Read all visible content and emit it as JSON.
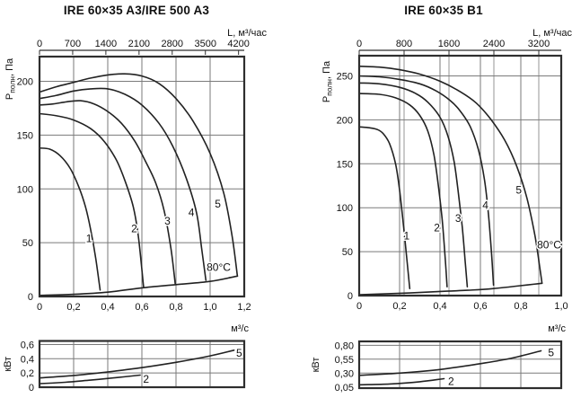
{
  "colors": {
    "curve": "#222222",
    "grid": "#7a7a7a",
    "grid_top": "#b9b9b9",
    "border": "#2e2e2e",
    "text": "#111111"
  },
  "chart_data": [
    {
      "type": "line",
      "title": "IRE 60×35 A3/IRE 500 A3",
      "top_axis": {
        "label": "L, м³/час",
        "per_hour_factor": 3600,
        "show_grid": false,
        "ticks": [
          {
            "t": "0",
            "v": 0
          },
          {
            "t": "700",
            "v": 700
          },
          {
            "t": "1400",
            "v": 1400
          },
          {
            "t": "2100",
            "v": 2100
          },
          {
            "t": "2800",
            "v": 2800
          },
          {
            "t": "3500",
            "v": 3500
          },
          {
            "t": "4200",
            "v": 4200
          }
        ]
      },
      "pressure_axis": {
        "label_main": "Р",
        "label_sub": "полн",
        "label_rest": ", Па",
        "max": 223,
        "ticks": [
          {
            "t": "0",
            "v": 0
          },
          {
            "t": "50",
            "v": 50
          },
          {
            "t": "100",
            "v": 100
          },
          {
            "t": "150",
            "v": 150
          },
          {
            "t": "200",
            "v": 200
          }
        ]
      },
      "flow_axis": {
        "label": "м³/с",
        "max": 1.2,
        "ticks": [
          {
            "t": "0",
            "v": 0
          },
          {
            "t": "0,2",
            "v": 0.2
          },
          {
            "t": "0,4",
            "v": 0.4
          },
          {
            "t": "0,6",
            "v": 0.6
          },
          {
            "t": "0,8",
            "v": 0.8
          },
          {
            "t": "1,0",
            "v": 1.0
          },
          {
            "t": "1,2",
            "v": 1.2
          }
        ]
      },
      "curves": [
        {
          "label": "1",
          "label_pos": [
            0.29,
            54
          ],
          "points": [
            [
              0,
              138
            ],
            [
              0.06,
              137
            ],
            [
              0.12,
              131
            ],
            [
              0.18,
              119
            ],
            [
              0.23,
              102
            ],
            [
              0.27,
              83
            ],
            [
              0.3,
              62
            ],
            [
              0.33,
              35
            ],
            [
              0.355,
              6
            ]
          ]
        },
        {
          "label": "2",
          "label_pos": [
            0.555,
            63
          ],
          "points": [
            [
              0,
              170
            ],
            [
              0.1,
              168
            ],
            [
              0.2,
              164
            ],
            [
              0.3,
              156
            ],
            [
              0.38,
              144
            ],
            [
              0.45,
              127
            ],
            [
              0.5,
              108
            ],
            [
              0.55,
              83
            ],
            [
              0.58,
              55
            ],
            [
              0.61,
              9
            ]
          ]
        },
        {
          "label": "3",
          "label_pos": [
            0.75,
            70
          ],
          "points": [
            [
              0,
              178
            ],
            [
              0.08,
              179
            ],
            [
              0.16,
              181
            ],
            [
              0.24,
              182
            ],
            [
              0.32,
              179
            ],
            [
              0.4,
              172
            ],
            [
              0.48,
              161
            ],
            [
              0.56,
              144
            ],
            [
              0.62,
              126
            ],
            [
              0.68,
              106
            ],
            [
              0.73,
              80
            ],
            [
              0.77,
              45
            ],
            [
              0.795,
              12
            ]
          ]
        },
        {
          "label": "4",
          "label_pos": [
            0.89,
            78
          ],
          "points": [
            [
              0,
              184
            ],
            [
              0.1,
              187
            ],
            [
              0.2,
              191
            ],
            [
              0.3,
              193
            ],
            [
              0.4,
              193
            ],
            [
              0.5,
              188
            ],
            [
              0.6,
              178
            ],
            [
              0.7,
              161
            ],
            [
              0.78,
              140
            ],
            [
              0.86,
              110
            ],
            [
              0.92,
              78
            ],
            [
              0.95,
              45
            ],
            [
              0.975,
              15
            ]
          ]
        },
        {
          "label": "5",
          "label_pos": [
            1.045,
            86
          ],
          "points": [
            [
              0,
              190
            ],
            [
              0.1,
              195
            ],
            [
              0.2,
              199
            ],
            [
              0.3,
              203
            ],
            [
              0.4,
              206
            ],
            [
              0.5,
              207
            ],
            [
              0.6,
              205
            ],
            [
              0.7,
              198
            ],
            [
              0.8,
              184
            ],
            [
              0.9,
              163
            ],
            [
              1.0,
              133
            ],
            [
              1.08,
              96
            ],
            [
              1.13,
              55
            ],
            [
              1.16,
              19
            ]
          ]
        }
      ],
      "envelope": [
        [
          0,
          1
        ],
        [
          0.2,
          2
        ],
        [
          0.4,
          4
        ],
        [
          0.6,
          8
        ],
        [
          0.8,
          11
        ],
        [
          1.0,
          14
        ],
        [
          1.16,
          19
        ]
      ],
      "annotation": {
        "text": "80°C",
        "pos": [
          1.05,
          27
        ]
      },
      "power_chart": {
        "y_label": "кВт",
        "y_bottom": 0,
        "y_top": 0.65,
        "ticks": [
          {
            "t": "0",
            "v": 0
          },
          {
            "t": "0,2",
            "v": 0.2
          },
          {
            "t": "0,4",
            "v": 0.4
          },
          {
            "t": "0,6",
            "v": 0.6
          }
        ],
        "curves": [
          {
            "label": "5",
            "label_pos": [
              1.17,
              0.48
            ],
            "points": [
              [
                0,
                0.13
              ],
              [
                0.2,
                0.165
              ],
              [
                0.4,
                0.215
              ],
              [
                0.6,
                0.275
              ],
              [
                0.8,
                0.35
              ],
              [
                1.0,
                0.44
              ],
              [
                1.14,
                0.52
              ]
            ]
          },
          {
            "label": "2",
            "label_pos": [
              0.625,
              0.115
            ],
            "points": [
              [
                0,
                0.05
              ],
              [
                0.15,
                0.07
              ],
              [
                0.3,
                0.1
              ],
              [
                0.45,
                0.135
              ],
              [
                0.59,
                0.17
              ]
            ]
          }
        ]
      }
    },
    {
      "type": "line",
      "title": "IRE 60×35 B1",
      "top_axis": {
        "label": "L, м³/час",
        "per_hour_factor": 3600,
        "show_grid": true,
        "ticks": [
          {
            "t": "0",
            "v": 0
          },
          {
            "t": "800",
            "v": 800
          },
          {
            "t": "1600",
            "v": 1600
          },
          {
            "t": "2400",
            "v": 2400
          },
          {
            "t": "3200",
            "v": 3200
          }
        ]
      },
      "pressure_axis": {
        "label_main": "Р",
        "label_sub": "полн",
        "label_rest": ", Па",
        "max": 273,
        "ticks": [
          {
            "t": "0",
            "v": 0
          },
          {
            "t": "50",
            "v": 50
          },
          {
            "t": "100",
            "v": 100
          },
          {
            "t": "150",
            "v": 150
          },
          {
            "t": "200",
            "v": 200
          },
          {
            "t": "250",
            "v": 250
          }
        ]
      },
      "flow_axis": {
        "label": "м³/с",
        "max": 1.0,
        "ticks": [
          {
            "t": "0",
            "v": 0
          },
          {
            "t": "0,2",
            "v": 0.2
          },
          {
            "t": "0,4",
            "v": 0.4
          },
          {
            "t": "0,6",
            "v": 0.6
          },
          {
            "t": "0,8",
            "v": 0.8
          },
          {
            "t": "1,0",
            "v": 1.0
          }
        ]
      },
      "curves": [
        {
          "label": "1",
          "label_pos": [
            0.235,
            68
          ],
          "points": [
            [
              0,
              192
            ],
            [
              0.05,
              191
            ],
            [
              0.09,
              189
            ],
            [
              0.12,
              184
            ],
            [
              0.15,
              173
            ],
            [
              0.18,
              150
            ],
            [
              0.2,
              120
            ],
            [
              0.22,
              78
            ],
            [
              0.24,
              32
            ],
            [
              0.25,
              8
            ]
          ]
        },
        {
          "label": "2",
          "label_pos": [
            0.385,
            77
          ],
          "points": [
            [
              0,
              230
            ],
            [
              0.1,
              229
            ],
            [
              0.18,
              225
            ],
            [
              0.25,
              217
            ],
            [
              0.3,
              205
            ],
            [
              0.34,
              187
            ],
            [
              0.37,
              160
            ],
            [
              0.39,
              128
            ],
            [
              0.41,
              88
            ],
            [
              0.425,
              45
            ],
            [
              0.435,
              10
            ]
          ]
        },
        {
          "label": "3",
          "label_pos": [
            0.49,
            88
          ],
          "points": [
            [
              0,
              242
            ],
            [
              0.1,
              241
            ],
            [
              0.2,
              237
            ],
            [
              0.28,
              230
            ],
            [
              0.34,
              220
            ],
            [
              0.4,
              203
            ],
            [
              0.44,
              181
            ],
            [
              0.47,
              152
            ],
            [
              0.49,
              118
            ],
            [
              0.51,
              78
            ],
            [
              0.525,
              38
            ],
            [
              0.535,
              10
            ]
          ]
        },
        {
          "label": "4",
          "label_pos": [
            0.625,
            103
          ],
          "points": [
            [
              0,
              250
            ],
            [
              0.1,
              249
            ],
            [
              0.2,
              246
            ],
            [
              0.3,
              241
            ],
            [
              0.38,
              233
            ],
            [
              0.45,
              222
            ],
            [
              0.5,
              210
            ],
            [
              0.55,
              192
            ],
            [
              0.59,
              166
            ],
            [
              0.62,
              132
            ],
            [
              0.64,
              92
            ],
            [
              0.655,
              48
            ],
            [
              0.665,
              12
            ]
          ]
        },
        {
          "label": "5",
          "label_pos": [
            0.79,
            120
          ],
          "points": [
            [
              0,
              261
            ],
            [
              0.1,
              260
            ],
            [
              0.2,
              257
            ],
            [
              0.3,
              252
            ],
            [
              0.4,
              244
            ],
            [
              0.5,
              232
            ],
            [
              0.58,
              219
            ],
            [
              0.65,
              201
            ],
            [
              0.72,
              177
            ],
            [
              0.78,
              147
            ],
            [
              0.83,
              111
            ],
            [
              0.87,
              68
            ],
            [
              0.895,
              30
            ],
            [
              0.905,
              14
            ]
          ]
        }
      ],
      "envelope": [
        [
          0,
          1
        ],
        [
          0.25,
          3
        ],
        [
          0.435,
          5
        ],
        [
          0.535,
          6
        ],
        [
          0.665,
          8
        ],
        [
          0.905,
          14
        ]
      ],
      "annotation": {
        "text": "80°C",
        "pos": [
          0.94,
          58
        ]
      },
      "power_chart": {
        "y_label": "кВт",
        "y_bottom": 0.03,
        "y_top": 0.87,
        "ticks": [
          {
            "t": "0,05",
            "v": 0.05
          },
          {
            "t": "0,30",
            "v": 0.3
          },
          {
            "t": "0,55",
            "v": 0.55
          },
          {
            "t": "0,80",
            "v": 0.8
          }
        ],
        "curves": [
          {
            "label": "5",
            "label_pos": [
              0.95,
              0.67
            ],
            "points": [
              [
                0,
                0.26
              ],
              [
                0.2,
                0.3
              ],
              [
                0.4,
                0.365
              ],
              [
                0.6,
                0.47
              ],
              [
                0.75,
                0.565
              ],
              [
                0.9,
                0.7
              ]
            ]
          },
          {
            "label": "2",
            "label_pos": [
              0.455,
              0.155
            ],
            "points": [
              [
                0,
                0.09
              ],
              [
                0.15,
                0.105
              ],
              [
                0.3,
                0.145
              ],
              [
                0.42,
                0.2
              ]
            ]
          }
        ]
      }
    }
  ]
}
